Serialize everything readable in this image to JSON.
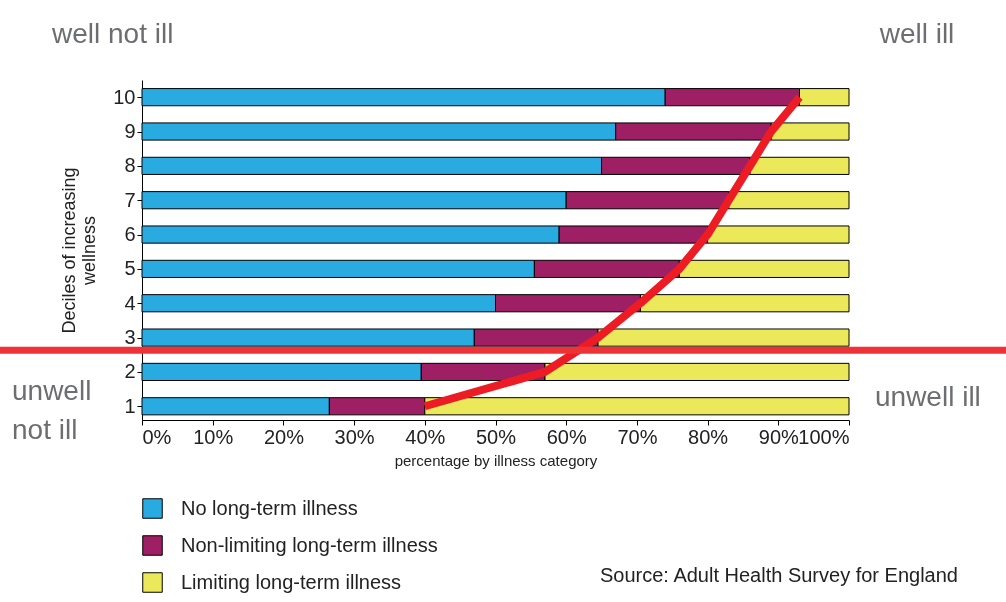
{
  "chart_data": {
    "type": "bar",
    "orientation": "horizontal",
    "stacked": true,
    "categories": [
      "10",
      "9",
      "8",
      "7",
      "6",
      "5",
      "4",
      "3",
      "2",
      "1"
    ],
    "ylabel": "Deciles of increasing wellness",
    "xlabel": "percentage by illness category",
    "xlim": [
      0,
      100
    ],
    "xticks": [
      {
        "value": 0,
        "label": "0%"
      },
      {
        "value": 10,
        "label": "10%"
      },
      {
        "value": 20,
        "label": "20%"
      },
      {
        "value": 30,
        "label": "30%"
      },
      {
        "value": 40,
        "label": "40%"
      },
      {
        "value": 50,
        "label": "50%"
      },
      {
        "value": 60,
        "label": "60%"
      },
      {
        "value": 70,
        "label": "70%"
      },
      {
        "value": 80,
        "label": "80%"
      },
      {
        "value": 90,
        "label": "90%"
      },
      {
        "value": 100,
        "label": "100%"
      }
    ],
    "legend": "bottom",
    "series": [
      {
        "name": "No long-term illness",
        "color": "#29abe2",
        "values": [
          74,
          67,
          65,
          60,
          59,
          55.5,
          50,
          47,
          39.5,
          26.5
        ]
      },
      {
        "name": "Non-limiting long-term illness",
        "color": "#9e1f63",
        "values": [
          19,
          22,
          21,
          23,
          21,
          20.5,
          20.5,
          17.5,
          17.5,
          13.5
        ]
      },
      {
        "name": "Limiting long-term illness",
        "color": "#ebe85a",
        "values": [
          7,
          11,
          14,
          17,
          20,
          24,
          29.5,
          35.5,
          43,
          60
        ]
      },
      {
        "type": "line",
        "color": "#ed1c24",
        "values": [
          93,
          89,
          86,
          83,
          80,
          76,
          70.5,
          64.5,
          57,
          40
        ]
      }
    ],
    "ref_lines": [
      {
        "axis": "y",
        "value": "3",
        "color": "#ee3338"
      }
    ],
    "annotations": [
      "well not ill",
      "well ill",
      "unwell not ill",
      "unwell ill",
      "Source: Adult Health Survey for England"
    ]
  }
}
